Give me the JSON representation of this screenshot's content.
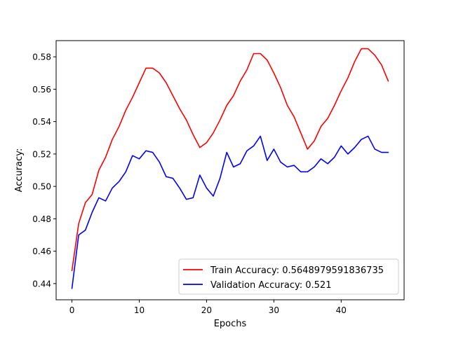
{
  "chart_data": {
    "type": "line",
    "title": "",
    "xlabel": "Epochs",
    "ylabel": "Accuracy:",
    "xlim": [
      -2.35,
      49.35
    ],
    "ylim": [
      0.43,
      0.59
    ],
    "xticks": [
      0,
      10,
      20,
      30,
      40
    ],
    "yticks": [
      0.44,
      0.46,
      0.48,
      0.5,
      0.52,
      0.54,
      0.56,
      0.58
    ],
    "xtick_labels": [
      "0",
      "10",
      "20",
      "30",
      "40"
    ],
    "ytick_labels": [
      "0.44",
      "0.46",
      "0.48",
      "0.50",
      "0.52",
      "0.54",
      "0.56",
      "0.58"
    ],
    "grid": false,
    "legend_position": "lower-right",
    "series": [
      {
        "name": "Train Accuracy: 0.5648979591836735",
        "color": "#ff0000",
        "x": [
          0,
          1,
          2,
          3,
          4,
          5,
          6,
          7,
          8,
          9,
          10,
          11,
          12,
          13,
          14,
          15,
          16,
          17,
          18,
          19,
          20,
          21,
          22,
          23,
          24,
          25,
          26,
          27,
          28,
          29,
          30,
          31,
          32,
          33,
          34,
          35,
          36,
          37,
          38,
          39,
          40,
          41,
          42,
          43,
          44,
          45,
          46,
          47
        ],
        "values": [
          0.448,
          0.477,
          0.49,
          0.495,
          0.51,
          0.518,
          0.529,
          0.537,
          0.547,
          0.555,
          0.564,
          0.573,
          0.573,
          0.57,
          0.564,
          0.556,
          0.548,
          0.541,
          0.532,
          0.524,
          0.527,
          0.533,
          0.541,
          0.55,
          0.556,
          0.565,
          0.572,
          0.582,
          0.582,
          0.578,
          0.57,
          0.561,
          0.55,
          0.543,
          0.533,
          0.523,
          0.528,
          0.537,
          0.542,
          0.55,
          0.559,
          0.567,
          0.577,
          0.585,
          0.585,
          0.581,
          0.575,
          0.565
        ]
      },
      {
        "name": "Validation Accuracy: 0.521",
        "color": "#0000ff",
        "x": [
          0,
          1,
          2,
          3,
          4,
          5,
          6,
          7,
          8,
          9,
          10,
          11,
          12,
          13,
          14,
          15,
          16,
          17,
          18,
          19,
          20,
          21,
          22,
          23,
          24,
          25,
          26,
          27,
          28,
          29,
          30,
          31,
          32,
          33,
          34,
          35,
          36,
          37,
          38,
          39,
          40,
          41,
          42,
          43,
          44,
          45,
          46,
          47
        ],
        "values": [
          0.437,
          0.47,
          0.473,
          0.484,
          0.493,
          0.491,
          0.499,
          0.503,
          0.509,
          0.519,
          0.517,
          0.522,
          0.521,
          0.515,
          0.506,
          0.505,
          0.499,
          0.492,
          0.493,
          0.507,
          0.499,
          0.494,
          0.505,
          0.521,
          0.512,
          0.514,
          0.522,
          0.525,
          0.531,
          0.516,
          0.523,
          0.515,
          0.512,
          0.513,
          0.509,
          0.509,
          0.512,
          0.517,
          0.514,
          0.518,
          0.525,
          0.52,
          0.524,
          0.529,
          0.531,
          0.523,
          0.521,
          0.521
        ]
      }
    ]
  }
}
